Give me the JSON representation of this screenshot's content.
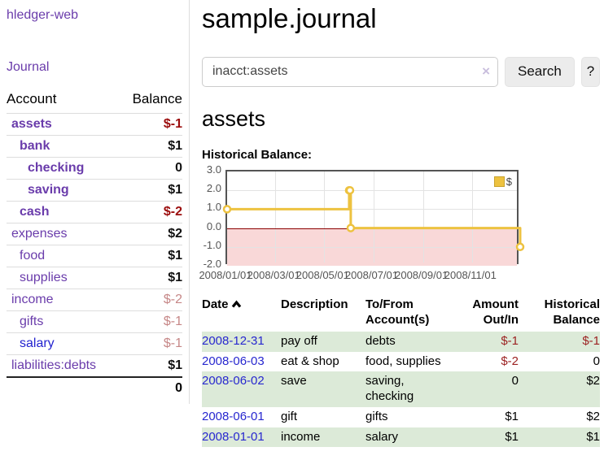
{
  "app": {
    "brand": "hledger-web",
    "nav_journal": "Journal"
  },
  "sidebar": {
    "accounts_header": {
      "account": "Account",
      "balance": "Balance"
    },
    "accounts": [
      {
        "name": "assets",
        "level": 1,
        "bold": true,
        "balance": "$-1",
        "balance_style": "neg-strong"
      },
      {
        "name": "bank",
        "level": 2,
        "bold": true,
        "balance": "$1",
        "balance_style": "pos"
      },
      {
        "name": "checking",
        "level": 3,
        "bold": true,
        "balance": "0",
        "balance_style": "pos"
      },
      {
        "name": "saving",
        "level": 3,
        "bold": true,
        "balance": "$1",
        "balance_style": "pos"
      },
      {
        "name": "cash",
        "level": 2,
        "bold": true,
        "balance": "$-2",
        "balance_style": "neg-strong"
      },
      {
        "name": "expenses",
        "level": 1,
        "bold": false,
        "balance": "$2",
        "balance_style": "pos"
      },
      {
        "name": "food",
        "level": 2,
        "bold": false,
        "balance": "$1",
        "balance_style": "pos"
      },
      {
        "name": "supplies",
        "level": 2,
        "bold": false,
        "balance": "$1",
        "balance_style": "pos"
      },
      {
        "name": "income",
        "level": 1,
        "bold": false,
        "balance": "$-2",
        "balance_style": "neg-soft"
      },
      {
        "name": "gifts",
        "level": 2,
        "bold": false,
        "balance": "$-1",
        "balance_style": "neg-soft"
      },
      {
        "name": "salary",
        "level": 2,
        "bold": false,
        "variant": "blue",
        "balance": "$-1",
        "balance_style": "neg-soft"
      },
      {
        "name": "liabilities:debts",
        "level": 1,
        "bold": false,
        "balance": "$1",
        "balance_style": "pos"
      }
    ],
    "total": "0"
  },
  "header": {
    "title": "sample.journal"
  },
  "search": {
    "value": "inacct:assets",
    "clear_icon": "×",
    "button_label": "Search",
    "help_label": "?"
  },
  "account_page": {
    "title": "assets",
    "chart_label": "Historical Balance:"
  },
  "chart_data": {
    "type": "line",
    "title": "Historical Balance:",
    "series": [
      {
        "name": "$",
        "color": "#edc240",
        "step": true,
        "points": [
          {
            "x": "2008-01-01",
            "y": 1
          },
          {
            "x": "2008-06-01",
            "y": 2
          },
          {
            "x": "2008-06-02",
            "y": 2
          },
          {
            "x": "2008-06-03",
            "y": 0
          },
          {
            "x": "2008-12-31",
            "y": -1
          }
        ]
      }
    ],
    "x_ticks": [
      "2008/01/01",
      "2008/03/01",
      "2008/05/01",
      "2008/07/01",
      "2008/09/01",
      "2008/11/01"
    ],
    "y_ticks": [
      "3.0",
      "2.0",
      "1.0",
      "0.0",
      "-1.0",
      "-2.0"
    ],
    "xlim": [
      "2008-01-01",
      "2008-12-31"
    ],
    "ylim": [
      -2,
      3
    ],
    "negative_region": {
      "from": -2,
      "to": 0,
      "color": "#f9d8d8",
      "line_color": "#8b0000"
    },
    "legend_position": "top-right",
    "grid": true
  },
  "register": {
    "columns": {
      "date": "Date",
      "description": "Description",
      "accounts": "To/From Account(s)",
      "amount": "Amount Out/In",
      "balance": "Historical Balance"
    },
    "sort_icon": "chevron-up",
    "rows": [
      {
        "date": "2008-12-31",
        "description": "pay off",
        "accounts": "debts",
        "amount": "$-1",
        "balance": "$-1"
      },
      {
        "date": "2008-06-03",
        "description": "eat & shop",
        "accounts": "food, supplies",
        "amount": "$-2",
        "balance": "0"
      },
      {
        "date": "2008-06-02",
        "description": "save",
        "accounts": "saving, checking",
        "amount": "0",
        "balance": "$2"
      },
      {
        "date": "2008-06-01",
        "description": "gift",
        "accounts": "gifts",
        "amount": "$1",
        "balance": "$2"
      },
      {
        "date": "2008-01-01",
        "description": "income",
        "accounts": "salary",
        "amount": "$1",
        "balance": "$1"
      }
    ]
  }
}
